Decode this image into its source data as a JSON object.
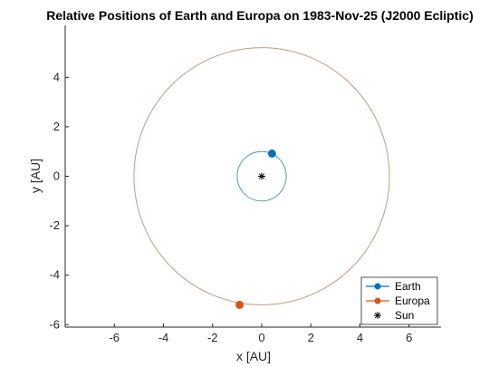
{
  "chart_data": {
    "type": "scatter",
    "title": "Relative Positions of Earth and Europa on 1983-Nov-25 (J2000 Ecliptic)",
    "xlabel": "x [AU]",
    "ylabel": "y [AU]",
    "xlim": [
      -8,
      7.3
    ],
    "ylim": [
      -6.1,
      6.1
    ],
    "xticks": [
      -6,
      -4,
      -2,
      0,
      2,
      4,
      6
    ],
    "yticks": [
      -6,
      -4,
      -2,
      0,
      2,
      4
    ],
    "grid": false,
    "legend_position": "bottom-right",
    "orbits": [
      {
        "name": "Earth orbit",
        "radius": 1.0,
        "color": "#4d99c2"
      },
      {
        "name": "Europa orbit",
        "radius": 5.2,
        "color": "#c09a80"
      }
    ],
    "series": [
      {
        "name": "Earth",
        "x": 0.42,
        "y": 0.92,
        "color": "#0072bd",
        "marker": "circle"
      },
      {
        "name": "Europa",
        "x": -0.9,
        "y": -5.2,
        "color": "#d95319",
        "marker": "circle"
      },
      {
        "name": "Sun",
        "x": 0,
        "y": 0,
        "color": "#000000",
        "marker": "asterisk"
      }
    ]
  }
}
